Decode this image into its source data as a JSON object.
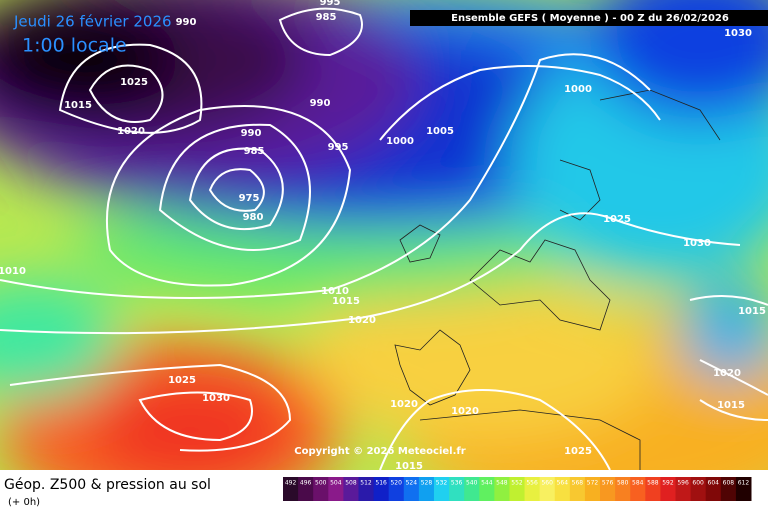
{
  "header": {
    "date": "Jeudi 26 février 2026",
    "time": "1:00 locale",
    "run": "Ensemble GEFS  ( Moyenne )  - 00 Z du 26/02/2026"
  },
  "isobars": [
    995,
    990,
    985,
    1025,
    1015,
    1020,
    990,
    990,
    985,
    995,
    1000,
    1005,
    1000,
    1030,
    975,
    980,
    1025,
    1030,
    1010,
    1010,
    1015,
    1020,
    1015,
    1025,
    1030,
    1020,
    1015,
    1020,
    1020,
    1025,
    1015
  ],
  "copyright": "Copyright © 2026 Meteociel.fr",
  "footer": {
    "title": "Géop. Z500 & pression au sol",
    "lead": "(+ 0h)"
  },
  "legend": {
    "labels": [
      492,
      496,
      500,
      504,
      508,
      512,
      516,
      520,
      524,
      528,
      532,
      536,
      540,
      544,
      548,
      552,
      556,
      560,
      564,
      568,
      572,
      576,
      580,
      584,
      588,
      592,
      596,
      600,
      604,
      608,
      612
    ],
    "colors": [
      "#2a0a2a",
      "#4a0a4a",
      "#6a106a",
      "#8a1a8a",
      "#5a1a9a",
      "#2a1aaa",
      "#1020c8",
      "#1040e0",
      "#1070f0",
      "#10a0f0",
      "#20d0f0",
      "#30e0c0",
      "#40e890",
      "#60f060",
      "#90f040",
      "#c0f030",
      "#e8f040",
      "#f8f060",
      "#f8e040",
      "#f8c830",
      "#f8b020",
      "#f89820",
      "#f88020",
      "#f86020",
      "#f04020",
      "#e02020",
      "#c01818",
      "#a01010",
      "#800808",
      "#500404",
      "#200000"
    ]
  }
}
